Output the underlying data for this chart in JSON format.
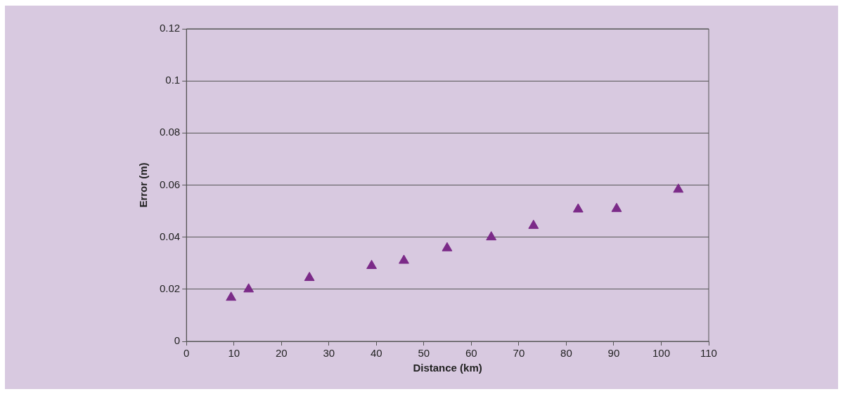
{
  "chart_data": {
    "type": "scatter",
    "xlabel": "Distance (km)",
    "ylabel": "Error (m)",
    "x": [
      9.4,
      13.1,
      25.9,
      39.0,
      45.8,
      54.9,
      64.2,
      73.1,
      82.5,
      90.6,
      103.6
    ],
    "series": [
      {
        "color": "#7b2a88",
        "values": [
          0.0168,
          0.02,
          0.0244,
          0.029,
          0.031,
          0.0358,
          0.04,
          0.0444,
          0.0507,
          0.0509,
          0.0583
        ]
      }
    ],
    "xlim": [
      0,
      110
    ],
    "xticks": [
      0,
      10,
      20,
      30,
      40,
      50,
      60,
      70,
      80,
      90,
      100,
      110
    ],
    "ylim": [
      0,
      0.12
    ],
    "yticks": [
      0,
      0.02,
      0.04,
      0.06,
      0.08,
      0.1,
      0.12
    ],
    "grid": "y",
    "legend": false,
    "marker": "triangle"
  }
}
